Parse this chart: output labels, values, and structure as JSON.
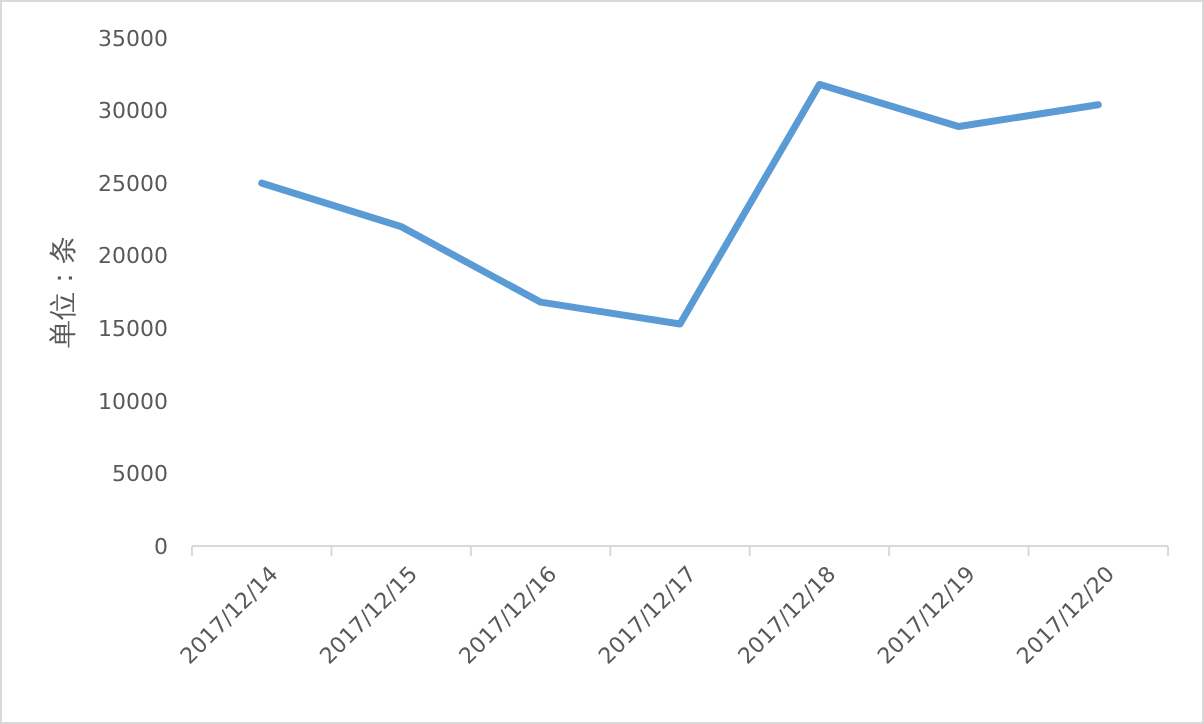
{
  "chart_data": {
    "type": "line",
    "ylabel": "单位：条",
    "categories": [
      "2017/12/14",
      "2017/12/15",
      "2017/12/16",
      "2017/12/17",
      "2017/12/18",
      "2017/12/19",
      "2017/12/20"
    ],
    "series": [
      {
        "color": "#5b9bd5",
        "values": [
          25000,
          22000,
          16800,
          15300,
          31800,
          28900,
          30400
        ]
      }
    ],
    "ylim": [
      0,
      35000
    ],
    "yticks": [
      0,
      5000,
      10000,
      15000,
      20000,
      25000,
      30000,
      35000
    ],
    "grid": false,
    "marker": "none",
    "line_style": "solid"
  }
}
